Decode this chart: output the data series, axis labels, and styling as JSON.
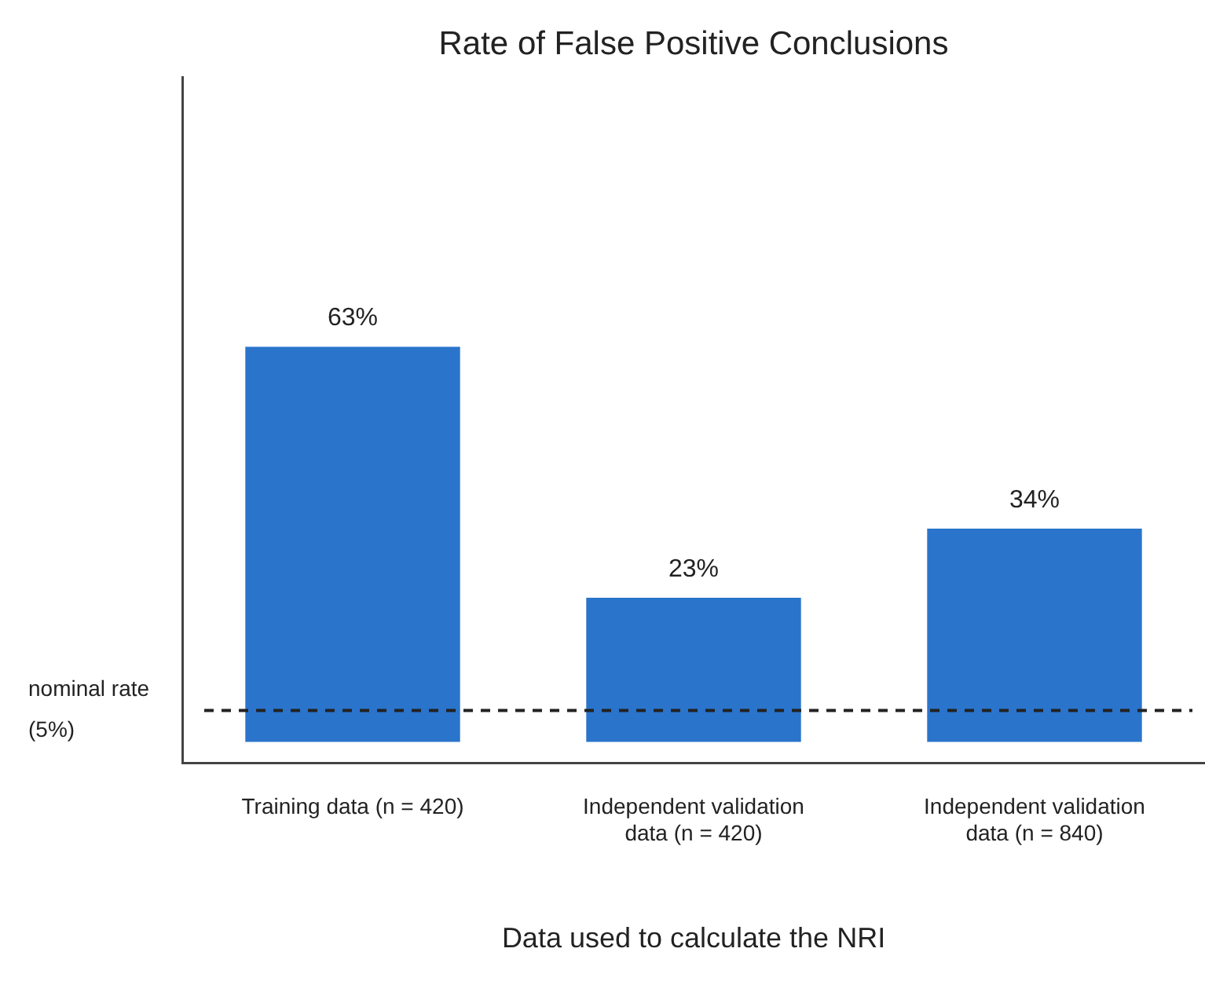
{
  "chart_data": {
    "type": "bar",
    "title": "Rate of False Positive Conclusions",
    "xlabel": "Data used to calculate the NRI",
    "categories": [
      "Training data (n = 420)",
      "Independent validation data (n = 420)",
      "Independent validation data (n = 840)"
    ],
    "values": [
      63,
      23,
      34
    ],
    "value_labels": [
      "63%",
      "23%",
      "34%"
    ],
    "color": "#2a74cc",
    "ylim": [
      -3.4,
      106
    ],
    "tick_labels": "x",
    "grid": false,
    "legend": false,
    "ref_lines": [
      {
        "axis": "y",
        "value": 5,
        "label": "nominal rate (5%)",
        "color": "#222222",
        "line_style": "dashed"
      }
    ]
  }
}
